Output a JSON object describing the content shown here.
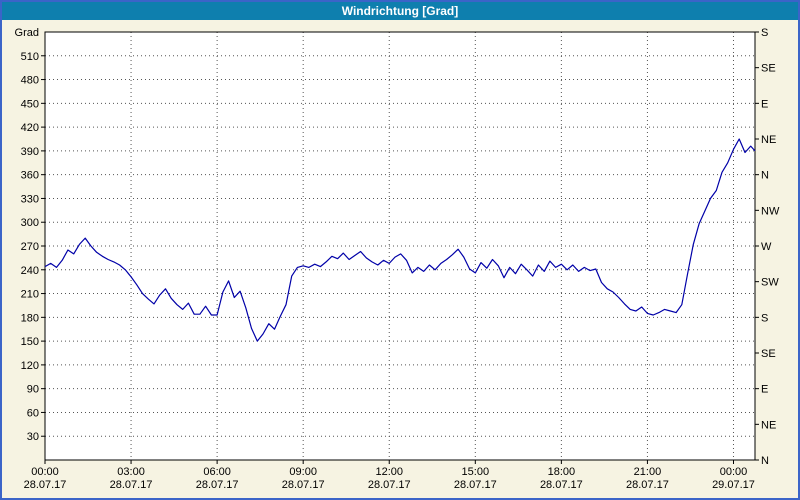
{
  "window": {
    "title": "Windrichtung [Grad]"
  },
  "colors": {
    "page_background": "#f6f3e2",
    "title_bar": "#0e7fae",
    "title_text": "#ffffff",
    "border": "#3b64c8",
    "plot_background": "#ffffff",
    "grid": "#555555",
    "axis": "#000000",
    "line": "#0000a8"
  },
  "chart_data": {
    "type": "line",
    "title": "Windrichtung [Grad]",
    "y_axis_label": "Grad",
    "y_min": 0,
    "y_max": 540,
    "y_step": 30,
    "x_min_hours": 0,
    "x_max_hours": 24.75,
    "grid": "dotted",
    "x_ticks": [
      {
        "t": 0,
        "time": "00:00",
        "date": "28.07.17"
      },
      {
        "t": 3,
        "time": "03:00",
        "date": "28.07.17"
      },
      {
        "t": 6,
        "time": "06:00",
        "date": "28.07.17"
      },
      {
        "t": 9,
        "time": "09:00",
        "date": "28.07.17"
      },
      {
        "t": 12,
        "time": "12:00",
        "date": "28.07.17"
      },
      {
        "t": 15,
        "time": "15:00",
        "date": "28.07.17"
      },
      {
        "t": 18,
        "time": "18:00",
        "date": "28.07.17"
      },
      {
        "t": 21,
        "time": "21:00",
        "date": "28.07.17"
      },
      {
        "t": 24,
        "time": "00:00",
        "date": "29.07.17"
      }
    ],
    "v_grid_hours": [
      3,
      6,
      9,
      12,
      15,
      18,
      21,
      24
    ],
    "right_axis_labels": [
      {
        "deg": 540,
        "label": "S"
      },
      {
        "deg": 495,
        "label": "SE"
      },
      {
        "deg": 450,
        "label": "E"
      },
      {
        "deg": 405,
        "label": "NE"
      },
      {
        "deg": 360,
        "label": "N"
      },
      {
        "deg": 315,
        "label": "NW"
      },
      {
        "deg": 270,
        "label": "W"
      },
      {
        "deg": 225,
        "label": "SW"
      },
      {
        "deg": 180,
        "label": "S"
      },
      {
        "deg": 135,
        "label": "SE"
      },
      {
        "deg": 90,
        "label": "E"
      },
      {
        "deg": 45,
        "label": "NE"
      },
      {
        "deg": 0,
        "label": "N"
      }
    ],
    "series": [
      {
        "name": "Windrichtung",
        "x": [
          0,
          0.2,
          0.4,
          0.6,
          0.8,
          1,
          1.2,
          1.4,
          1.6,
          1.8,
          2,
          2.2,
          2.4,
          2.6,
          2.8,
          3,
          3.2,
          3.4,
          3.6,
          3.8,
          4,
          4.2,
          4.4,
          4.6,
          4.8,
          5,
          5.2,
          5.4,
          5.6,
          5.8,
          6,
          6.2,
          6.4,
          6.6,
          6.8,
          7,
          7.2,
          7.4,
          7.6,
          7.8,
          8,
          8.2,
          8.4,
          8.6,
          8.8,
          9,
          9.2,
          9.4,
          9.6,
          9.8,
          10,
          10.2,
          10.4,
          10.6,
          10.8,
          11,
          11.2,
          11.4,
          11.6,
          11.8,
          12,
          12.2,
          12.4,
          12.6,
          12.8,
          13,
          13.2,
          13.4,
          13.6,
          13.8,
          14,
          14.2,
          14.4,
          14.6,
          14.8,
          15,
          15.2,
          15.4,
          15.6,
          15.8,
          16,
          16.2,
          16.4,
          16.6,
          16.8,
          17,
          17.2,
          17.4,
          17.6,
          17.8,
          18,
          18.2,
          18.4,
          18.6,
          18.8,
          19,
          19.2,
          19.4,
          19.6,
          19.8,
          20,
          20.2,
          20.4,
          20.6,
          20.8,
          21,
          21.2,
          21.4,
          21.6,
          21.8,
          22,
          22.2,
          22.4,
          22.6,
          22.8,
          23,
          23.2,
          23.4,
          23.6,
          23.8,
          24,
          24.2,
          24.4,
          24.6,
          24.75
        ],
        "y": [
          244,
          248,
          243,
          252,
          265,
          260,
          272,
          280,
          270,
          262,
          257,
          253,
          250,
          246,
          240,
          231,
          221,
          210,
          203,
          197,
          208,
          216,
          204,
          196,
          190,
          198,
          184,
          184,
          194,
          183,
          183,
          212,
          226,
          205,
          213,
          192,
          166,
          150,
          159,
          172,
          165,
          181,
          196,
          232,
          243,
          245,
          243,
          247,
          244,
          250,
          257,
          254,
          261,
          253,
          258,
          263,
          255,
          250,
          246,
          252,
          248,
          256,
          260,
          252,
          236,
          243,
          238,
          246,
          240,
          248,
          253,
          259,
          266,
          256,
          241,
          236,
          249,
          242,
          253,
          245,
          230,
          243,
          235,
          247,
          240,
          232,
          246,
          238,
          251,
          243,
          247,
          240,
          246,
          238,
          243,
          239,
          241,
          224,
          216,
          212,
          205,
          197,
          190,
          188,
          193,
          185,
          183,
          186,
          190,
          188,
          186,
          196,
          235,
          272,
          298,
          314,
          330,
          340,
          363,
          375,
          392,
          405,
          388,
          396,
          390
        ]
      }
    ]
  }
}
